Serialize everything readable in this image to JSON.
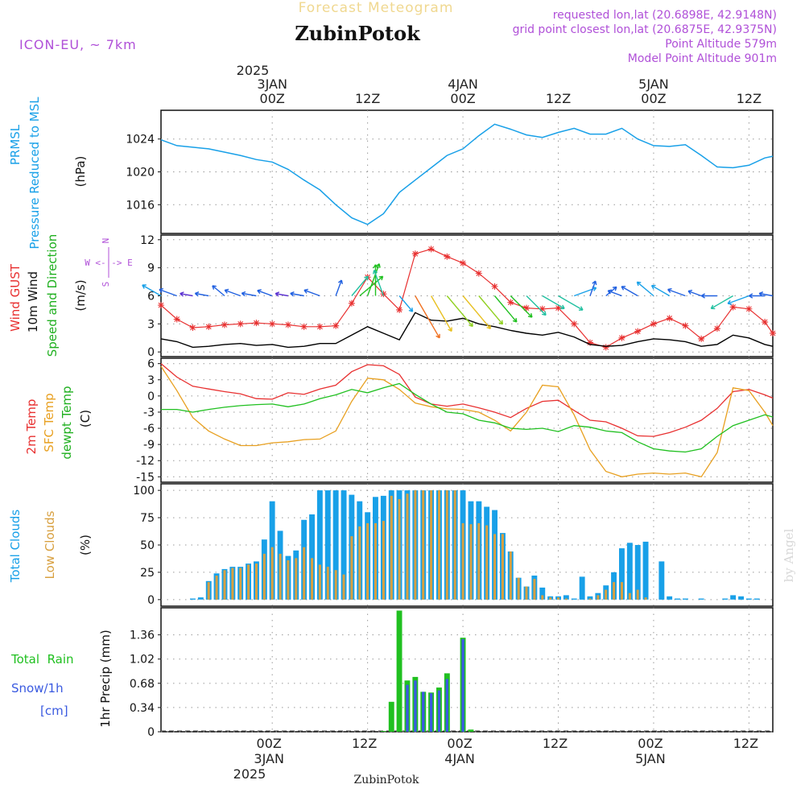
{
  "header": {
    "product_title": "Forecast Meteogram",
    "location_name": "ZubinPotok",
    "model": "ICON-EU, ~ 7km",
    "requested": "requested lon,lat (20.6898E, 42.9148N)",
    "closest": "grid point closest lon,lat (20.6875E, 42.9375N)",
    "point_altitude": "Point Altitude 579m",
    "model_altitude": "Model Point Altitude 901m",
    "footer_name": "ZubinPotok",
    "watermark": "by Angel"
  },
  "time_axis": {
    "hours_start": -14,
    "hours_end": 63,
    "top_year": "2025",
    "bottom_year": "2025",
    "ticks": [
      {
        "hour": 0,
        "label": "00Z",
        "date": "3JAN"
      },
      {
        "hour": 12,
        "label": "12Z",
        "date": ""
      },
      {
        "hour": 24,
        "label": "00Z",
        "date": "4JAN"
      },
      {
        "hour": 36,
        "label": "12Z",
        "date": ""
      },
      {
        "hour": 48,
        "label": "00Z",
        "date": "5JAN"
      },
      {
        "hour": 60,
        "label": "12Z",
        "date": ""
      }
    ]
  },
  "panels": {
    "pressure": {
      "label_1": "PRMSL",
      "label_2": "Pressure Reduced to MSL",
      "unit": "(hPa)",
      "color": "#18a0e8",
      "ylim": [
        1012.5,
        1027.5
      ],
      "ticks": [
        "1016",
        "1020",
        "1024"
      ],
      "tick_values": [
        1016,
        1020,
        1024
      ]
    },
    "wind": {
      "label_gust": "Wind GUST",
      "label_wind": "10m Wind",
      "label_dir": "Speed and Direction",
      "unit": "(m/s)",
      "compass_n": "N",
      "compass_s": "S",
      "compass_w": "W <-|-> E",
      "gust_color": "#e83030",
      "wind_color": "#000000",
      "ylim": [
        -0.5,
        12.5
      ],
      "ticks": [
        "0",
        "3",
        "6",
        "9",
        "12"
      ],
      "tick_values": [
        0,
        3,
        6,
        9,
        12
      ]
    },
    "temperature": {
      "label_t2m": "2m Temp",
      "label_sfc": "SFC Temp",
      "label_dew": "dewpt Temp",
      "unit": "(C)",
      "t2m_color": "#e83030",
      "sfc_color": "#e8a020",
      "dew_color": "#20c020",
      "ylim": [
        -16,
        7
      ],
      "ticks": [
        "6",
        "3",
        "0",
        "-3",
        "-6",
        "-9",
        "-12",
        "-15"
      ],
      "tick_values": [
        6,
        3,
        0,
        -3,
        -6,
        -9,
        -12,
        -15
      ]
    },
    "clouds": {
      "label_total": "Total Clouds",
      "label_low": "Low Clouds",
      "unit": "(%)",
      "total_color": "#18a0e8",
      "low_color": "#d8a040",
      "ylim": [
        -6,
        106
      ],
      "ticks": [
        "0",
        "25",
        "50",
        "75",
        "100"
      ],
      "tick_values": [
        0,
        25,
        50,
        75,
        100
      ]
    },
    "precip": {
      "label_rain": "Total  Rain",
      "label_snow": "Snow/1h",
      "label_cm": "[cm]",
      "unit": "1hr Precip (mm)",
      "rain_color": "#20c020",
      "snow_color": "#3a5ae0",
      "ylim": [
        0,
        1.74
      ],
      "ticks": [
        "0",
        "0.34",
        "0.68",
        "1.02",
        "1.36"
      ],
      "tick_values": [
        0,
        0.34,
        0.68,
        1.02,
        1.36
      ]
    }
  },
  "chart_data": {
    "type": "line",
    "x_unit": "hours from 00Z 3JAN 2025",
    "series": [
      {
        "name": "PRMSL",
        "x": [
          -14,
          -12,
          -10,
          -8,
          -6,
          -4,
          -2,
          0,
          2,
          4,
          6,
          8,
          10,
          12,
          14,
          16,
          18,
          20,
          22,
          24,
          26,
          28,
          30,
          32,
          34,
          36,
          38,
          40,
          42,
          44,
          46,
          48,
          50,
          52,
          54,
          56,
          58,
          60,
          62,
          63
        ],
        "values": [
          1023.9,
          1023.2,
          1023.0,
          1022.8,
          1022.4,
          1022.0,
          1021.5,
          1021.2,
          1020.3,
          1019.0,
          1017.8,
          1016.0,
          1014.4,
          1013.6,
          1014.9,
          1017.5,
          1019.0,
          1020.5,
          1022.0,
          1022.8,
          1024.4,
          1025.8,
          1025.2,
          1024.5,
          1024.2,
          1024.8,
          1025.3,
          1024.6,
          1024.6,
          1025.3,
          1024.0,
          1023.2,
          1023.1,
          1023.3,
          1022.0,
          1020.6,
          1020.5,
          1020.8,
          1021.7,
          1021.9
        ]
      },
      {
        "name": "Wind GUST",
        "x": [
          -14,
          -12,
          -10,
          -8,
          -6,
          -4,
          -2,
          0,
          2,
          4,
          6,
          8,
          10,
          12,
          14,
          16,
          18,
          20,
          22,
          24,
          26,
          28,
          30,
          32,
          34,
          36,
          38,
          40,
          42,
          44,
          46,
          48,
          50,
          52,
          54,
          56,
          58,
          60,
          62,
          63
        ],
        "values": [
          5.0,
          3.5,
          2.6,
          2.7,
          2.9,
          3.0,
          3.1,
          3.0,
          2.9,
          2.7,
          2.7,
          2.8,
          5.2,
          8.0,
          6.2,
          4.5,
          10.5,
          11.0,
          10.2,
          9.5,
          8.4,
          7.0,
          5.3,
          4.7,
          4.6,
          4.7,
          3.0,
          1.0,
          0.5,
          1.5,
          2.2,
          3.0,
          3.6,
          2.8,
          1.4,
          2.5,
          4.8,
          4.6,
          3.2,
          2.0
        ]
      },
      {
        "name": "10m Wind",
        "x": [
          -14,
          -12,
          -10,
          -8,
          -6,
          -4,
          -2,
          0,
          2,
          4,
          6,
          8,
          10,
          12,
          14,
          16,
          18,
          20,
          22,
          24,
          26,
          28,
          30,
          32,
          34,
          36,
          38,
          40,
          42,
          44,
          46,
          48,
          50,
          52,
          54,
          56,
          58,
          60,
          62,
          63
        ],
        "values": [
          1.4,
          1.1,
          0.5,
          0.6,
          0.8,
          0.9,
          0.7,
          0.8,
          0.5,
          0.6,
          0.9,
          0.9,
          1.8,
          2.7,
          2.0,
          1.3,
          4.2,
          3.4,
          3.3,
          3.6,
          3.0,
          2.7,
          2.3,
          2.0,
          1.8,
          2.1,
          1.6,
          0.8,
          0.6,
          0.7,
          1.1,
          1.4,
          1.3,
          1.1,
          0.6,
          0.8,
          1.8,
          1.5,
          0.8,
          0.6
        ]
      },
      {
        "name": "2m Temp",
        "x": [
          -14,
          -12,
          -10,
          -8,
          -6,
          -4,
          -2,
          0,
          2,
          4,
          6,
          8,
          10,
          12,
          14,
          16,
          18,
          20,
          22,
          24,
          26,
          28,
          30,
          32,
          34,
          36,
          38,
          40,
          42,
          44,
          46,
          48,
          50,
          52,
          54,
          56,
          58,
          60,
          62,
          63
        ],
        "values": [
          6.0,
          3.5,
          1.8,
          1.3,
          0.8,
          0.4,
          -0.5,
          -0.6,
          0.6,
          0.3,
          1.3,
          2.0,
          4.5,
          5.8,
          5.6,
          4.0,
          -0.2,
          -1.5,
          -1.9,
          -1.5,
          -2.2,
          -3.0,
          -4.0,
          -2.3,
          -1.0,
          -0.8,
          -2.7,
          -4.5,
          -4.8,
          -6.0,
          -7.4,
          -7.5,
          -6.8,
          -5.8,
          -4.5,
          -2.3,
          0.8,
          1.2,
          0.2,
          -0.4
        ]
      },
      {
        "name": "SFC Temp",
        "x": [
          -14,
          -12,
          -10,
          -8,
          -6,
          -4,
          -2,
          0,
          2,
          4,
          6,
          8,
          10,
          12,
          14,
          16,
          18,
          20,
          22,
          24,
          26,
          28,
          30,
          32,
          34,
          36,
          38,
          40,
          42,
          44,
          46,
          48,
          50,
          52,
          54,
          56,
          58,
          60,
          62,
          63
        ],
        "values": [
          5.5,
          1.0,
          -4.0,
          -6.5,
          -8.0,
          -9.2,
          -9.2,
          -8.7,
          -8.5,
          -8.1,
          -8.0,
          -6.5,
          -1.0,
          3.3,
          3.0,
          1.2,
          -1.3,
          -2.0,
          -2.4,
          -2.5,
          -3.0,
          -4.5,
          -6.5,
          -3.0,
          2.0,
          1.7,
          -3.5,
          -10.0,
          -14.0,
          -15.0,
          -14.5,
          -14.3,
          -14.5,
          -14.3,
          -15.0,
          -10.5,
          1.5,
          1.0,
          -3.0,
          -5.5
        ]
      },
      {
        "name": "dewpt Temp",
        "x": [
          -14,
          -12,
          -10,
          -8,
          -6,
          -4,
          -2,
          0,
          2,
          4,
          6,
          8,
          10,
          12,
          14,
          16,
          18,
          20,
          22,
          24,
          26,
          28,
          30,
          32,
          34,
          36,
          38,
          40,
          42,
          44,
          46,
          48,
          50,
          52,
          54,
          56,
          58,
          60,
          62,
          63
        ],
        "values": [
          -2.5,
          -2.5,
          -3.0,
          -2.5,
          -2.1,
          -1.8,
          -1.6,
          -1.5,
          -2.0,
          -1.5,
          -0.5,
          0.2,
          1.2,
          0.6,
          1.5,
          2.3,
          0.3,
          -1.5,
          -3.0,
          -3.3,
          -4.5,
          -5.0,
          -6.0,
          -6.2,
          -6.0,
          -6.6,
          -5.5,
          -5.8,
          -6.5,
          -6.8,
          -8.5,
          -9.8,
          -10.2,
          -10.4,
          -9.8,
          -7.5,
          -5.5,
          -4.5,
          -3.5,
          -3.9
        ]
      }
    ],
    "wind_vectors": {
      "x": [
        -14,
        -12,
        -10,
        -8,
        -6,
        -4,
        -2,
        0,
        2,
        4,
        6,
        8,
        10,
        11,
        12,
        13,
        14,
        16,
        18,
        20,
        22,
        24,
        26,
        28,
        30,
        32,
        34,
        36,
        38,
        40,
        42,
        44,
        46,
        48,
        50,
        52,
        54,
        56,
        58,
        60,
        62,
        63
      ],
      "dir_deg": [
        120,
        110,
        100,
        100,
        130,
        110,
        100,
        110,
        100,
        100,
        110,
        200,
        220,
        230,
        200,
        180,
        160,
        320,
        330,
        330,
        320,
        320,
        320,
        320,
        315,
        315,
        300,
        300,
        250,
        200,
        230,
        110,
        120,
        130,
        120,
        110,
        110,
        90,
        60,
        70,
        90,
        100
      ],
      "speed": [
        1.4,
        1.1,
        0.5,
        0.6,
        0.8,
        0.9,
        0.7,
        0.8,
        0.5,
        0.6,
        0.9,
        0.9,
        1.8,
        2.3,
        2.7,
        2.4,
        2.0,
        1.3,
        4.2,
        3.4,
        3.3,
        3.6,
        3.0,
        2.7,
        2.3,
        2.0,
        1.8,
        2.1,
        1.6,
        0.8,
        0.6,
        0.7,
        1.1,
        1.4,
        1.3,
        1.1,
        0.6,
        0.8,
        1.8,
        1.5,
        0.8,
        0.6
      ]
    },
    "clouds": {
      "x": [
        -14,
        -13,
        -12,
        -11,
        -10,
        -9,
        -8,
        -7,
        -6,
        -5,
        -4,
        -3,
        -2,
        -1,
        0,
        1,
        2,
        3,
        4,
        5,
        6,
        7,
        8,
        9,
        10,
        11,
        12,
        13,
        14,
        15,
        16,
        17,
        18,
        19,
        20,
        21,
        22,
        23,
        24,
        25,
        26,
        27,
        28,
        29,
        30,
        31,
        32,
        33,
        34,
        35,
        36,
        37,
        38,
        39,
        40,
        41,
        42,
        43,
        44,
        45,
        46,
        47,
        48,
        49,
        50,
        51,
        52,
        53,
        54,
        55,
        56,
        57,
        58,
        59,
        60,
        61,
        62,
        63
      ],
      "total": [
        0,
        0,
        0,
        0,
        1,
        2,
        17,
        24,
        28,
        30,
        30,
        33,
        35,
        55,
        90,
        63,
        40,
        45,
        73,
        78,
        100,
        100,
        100,
        100,
        96,
        90,
        80,
        94,
        95,
        100,
        100,
        100,
        100,
        100,
        100,
        100,
        100,
        100,
        100,
        90,
        90,
        85,
        82,
        61,
        44,
        20,
        12,
        22,
        11,
        3,
        3,
        4,
        1,
        21,
        3,
        6,
        13,
        25,
        47,
        52,
        50,
        53,
        0,
        35,
        3,
        1,
        1,
        0,
        1,
        0,
        0,
        1,
        4,
        3,
        1,
        1,
        0,
        0
      ],
      "low": [
        0,
        0,
        0,
        0,
        0,
        0,
        16,
        22,
        27,
        29,
        29,
        32,
        33,
        42,
        48,
        42,
        36,
        38,
        48,
        38,
        32,
        30,
        27,
        23,
        58,
        67,
        70,
        70,
        72,
        95,
        92,
        97,
        100,
        100,
        100,
        100,
        100,
        100,
        70,
        69,
        70,
        68,
        60,
        60,
        44,
        20,
        12,
        19,
        4,
        2,
        2,
        1,
        0,
        0,
        1,
        4,
        9,
        16,
        16,
        6,
        9,
        2,
        0,
        0,
        0,
        0,
        0,
        0,
        0,
        0,
        0,
        0,
        0,
        0,
        0,
        0,
        0,
        0
      ]
    },
    "precip": {
      "x": [
        14,
        15,
        16,
        17,
        18,
        19,
        20,
        21,
        22,
        23,
        24,
        25
      ],
      "rain": [
        0.01,
        0.42,
        1.7,
        0.72,
        0.77,
        0.56,
        0.55,
        0.62,
        0.82,
        0.0,
        1.32,
        0.03
      ],
      "snow": [
        0.0,
        0.0,
        0.0,
        0.66,
        0.72,
        0.56,
        0.54,
        0.58,
        0.74,
        0.0,
        1.3,
        0.0
      ]
    }
  }
}
